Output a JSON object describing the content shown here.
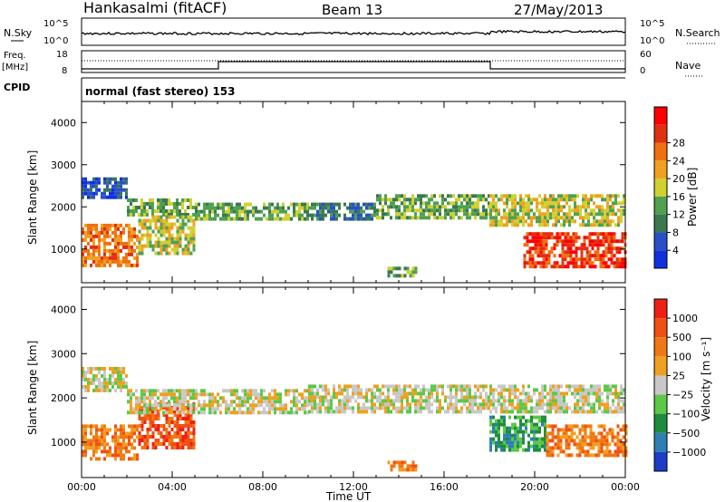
{
  "header": {
    "station": "Hankasalmi (fitACF)",
    "beam": "Beam 13",
    "date": "27/May/2013"
  },
  "panels": {
    "nsky": {
      "left_label": "N.Sky",
      "right_label": "N.Search",
      "ticks_left": [
        "10^5",
        "10^0"
      ],
      "ticks_right": [
        "10^5",
        "10^0"
      ]
    },
    "freq": {
      "left_label": "Freq.",
      "unit_label": "[MHz]",
      "ticks_left": [
        "18",
        "8"
      ],
      "ticks_right": [
        "60",
        "0"
      ],
      "right_label": "Nave",
      "cpid_label": "CPID"
    },
    "cpid_text": "normal (fast stereo) 153"
  },
  "chart_data": [
    {
      "type": "heatmap",
      "name": "power",
      "ylabel": "Slant Range [km]",
      "xlabel": "",
      "ylim": [
        200,
        4500
      ],
      "yticks": [
        "1000",
        "2000",
        "3000",
        "4000"
      ],
      "colorbar": {
        "label": "Power [dB]",
        "ticks": [
          "4",
          "8",
          "12",
          "16",
          "20",
          "24",
          "28"
        ],
        "colors": [
          "#1030e0",
          "#2850c8",
          "#3a7850",
          "#50a050",
          "#d0d030",
          "#f0a020",
          "#f07010",
          "#e03010",
          "#ff0000"
        ]
      },
      "bands": [
        {
          "t0": 0.0,
          "t1": 2.0,
          "r0": 2250,
          "r1": 2700,
          "level": 1
        },
        {
          "t0": 0.0,
          "t1": 2.5,
          "r0": 600,
          "r1": 1600,
          "level": 6
        },
        {
          "t0": 2.0,
          "t1": 5.0,
          "r0": 1800,
          "r1": 2200,
          "level": 3
        },
        {
          "t0": 2.5,
          "t1": 5.0,
          "r0": 900,
          "r1": 1800,
          "level": 4
        },
        {
          "t0": 5.0,
          "t1": 10.0,
          "r0": 1700,
          "r1": 2100,
          "level": 3
        },
        {
          "t0": 10.0,
          "t1": 13.0,
          "r0": 1700,
          "r1": 2100,
          "level": 2
        },
        {
          "t0": 13.5,
          "t1": 14.8,
          "r0": 400,
          "r1": 580,
          "level": 3
        },
        {
          "t0": 13.0,
          "t1": 18.0,
          "r0": 1700,
          "r1": 2300,
          "level": 3
        },
        {
          "t0": 18.0,
          "t1": 24.0,
          "r0": 1600,
          "r1": 2300,
          "level": 4
        },
        {
          "t0": 19.5,
          "t1": 24.0,
          "r0": 600,
          "r1": 1400,
          "level": 7
        }
      ]
    },
    {
      "type": "heatmap",
      "name": "velocity",
      "ylabel": "Slant Range [km]",
      "xlabel": "Time UT",
      "ylim": [
        200,
        4500
      ],
      "yticks": [
        "1000",
        "2000",
        "3000",
        "4000"
      ],
      "xticks": [
        "00:00",
        "04:00",
        "08:00",
        "12:00",
        "16:00",
        "20:00",
        "00:00"
      ],
      "colorbar": {
        "label": "Velocity [m s⁻¹]",
        "ticks": [
          "1000",
          "500",
          "100",
          "25",
          "−25",
          "−100",
          "−500",
          "−1000"
        ],
        "colors": [
          "#1e3cc8",
          "#2d7fb4",
          "#1e8c3c",
          "#5cc846",
          "#c8c8c8",
          "#f0a01e",
          "#f07814",
          "#f05014",
          "#f01e14"
        ]
      },
      "bands": [
        {
          "t0": 0.0,
          "t1": 2.0,
          "r0": 2200,
          "r1": 2700,
          "level": 4
        },
        {
          "t0": 0.0,
          "t1": 2.5,
          "r0": 600,
          "r1": 1400,
          "level": 6
        },
        {
          "t0": 2.5,
          "t1": 5.0,
          "r0": 900,
          "r1": 1900,
          "level": 7
        },
        {
          "t0": 2.0,
          "t1": 10.0,
          "r0": 1700,
          "r1": 2200,
          "level": 4
        },
        {
          "t0": 10.0,
          "t1": 18.0,
          "r0": 1700,
          "r1": 2300,
          "level": 4
        },
        {
          "t0": 13.5,
          "t1": 14.8,
          "r0": 400,
          "r1": 580,
          "level": 6
        },
        {
          "t0": 18.0,
          "t1": 24.0,
          "r0": 1700,
          "r1": 2300,
          "level": 4
        },
        {
          "t0": 18.0,
          "t1": 20.5,
          "r0": 800,
          "r1": 1600,
          "level": 2
        },
        {
          "t0": 20.5,
          "t1": 24.0,
          "r0": 700,
          "r1": 1400,
          "level": 6
        }
      ]
    }
  ]
}
